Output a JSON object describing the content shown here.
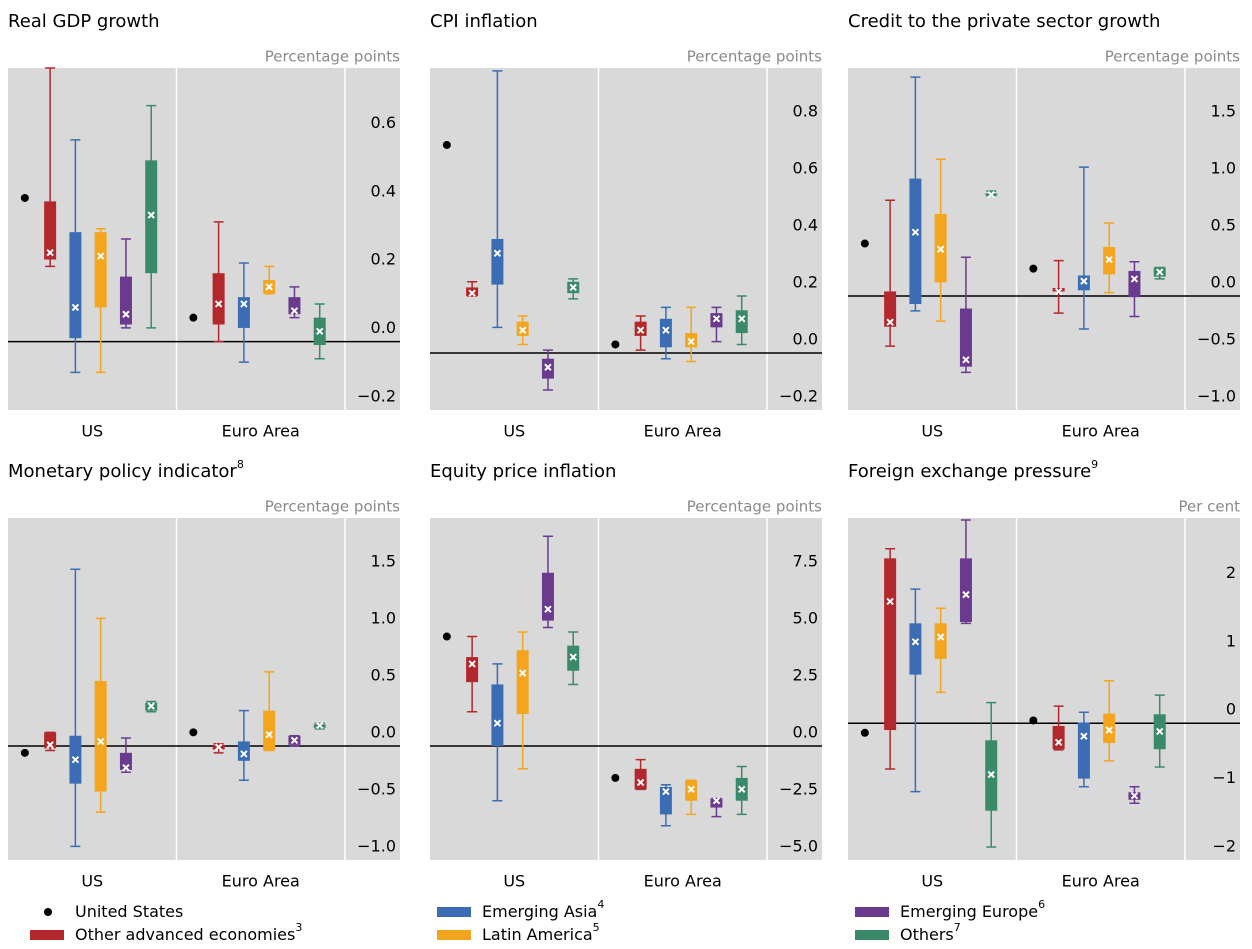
{
  "chart_data": [
    {
      "type": "box",
      "title": "Real GDP growth",
      "unit_label": "Percentage points",
      "categories": [
        "US",
        "Euro Area"
      ],
      "ylim": [
        -0.2,
        0.8
      ],
      "yticks": [
        {
          "value": -0.2,
          "label": "−0.2"
        },
        {
          "value": 0,
          "label": "0.0"
        },
        0.2,
        0.4,
        0.6
      ],
      "point": {
        "values": [
          0.42,
          0.07
        ]
      },
      "series": [
        {
          "values": [
            [
              0.22,
              0.24,
              0.26,
              0.41,
              0.8
            ],
            [
              0.0,
              0.05,
              0.11,
              0.2,
              0.35
            ]
          ]
        },
        {
          "values": [
            [
              -0.09,
              0.01,
              0.1,
              0.32,
              0.59
            ],
            [
              -0.06,
              0.04,
              0.11,
              0.13,
              0.23
            ]
          ]
        },
        {
          "values": [
            [
              -0.09,
              0.1,
              0.25,
              0.32,
              0.33
            ],
            [
              0.14,
              0.14,
              0.16,
              0.18,
              0.22
            ]
          ]
        },
        {
          "values": [
            [
              0.04,
              0.05,
              0.08,
              0.19,
              0.3
            ],
            [
              0.07,
              0.08,
              0.09,
              0.13,
              0.16
            ]
          ]
        },
        {
          "values": [
            [
              0.04,
              0.2,
              0.37,
              0.53,
              0.69
            ],
            [
              -0.05,
              -0.01,
              0.03,
              0.07,
              0.11
            ]
          ]
        }
      ]
    },
    {
      "type": "box",
      "title": "CPI inflation",
      "unit_label": "Percentage points",
      "categories": [
        "US",
        "Euro Area"
      ],
      "ylim": [
        -0.2,
        1.0
      ],
      "yticks": [
        {
          "value": -0.2,
          "label": "−0.2"
        },
        {
          "value": 0,
          "label": "0.0"
        },
        0.2,
        0.4,
        0.6,
        0.8
      ],
      "point": {
        "values": [
          0.73,
          0.03
        ]
      },
      "series": [
        {
          "values": [
            [
              0.2,
              0.2,
              0.21,
              0.23,
              0.25
            ],
            [
              0.01,
              0.06,
              0.08,
              0.11,
              0.13
            ]
          ]
        },
        {
          "values": [
            [
              0.09,
              0.24,
              0.35,
              0.4,
              0.99
            ],
            [
              -0.02,
              0.02,
              0.08,
              0.12,
              0.16
            ]
          ]
        },
        {
          "values": [
            [
              0.03,
              0.06,
              0.08,
              0.11,
              0.13
            ],
            [
              -0.03,
              0.02,
              0.04,
              0.07,
              0.16
            ]
          ]
        },
        {
          "values": [
            [
              -0.13,
              -0.09,
              -0.05,
              -0.02,
              0.01
            ],
            [
              0.04,
              0.09,
              0.12,
              0.14,
              0.16
            ]
          ]
        },
        {
          "values": [
            [
              0.19,
              0.21,
              0.23,
              0.25,
              0.26
            ],
            [
              0.03,
              0.07,
              0.12,
              0.15,
              0.2
            ]
          ]
        }
      ]
    },
    {
      "type": "box",
      "title": "Credit to the private sector growth",
      "unit_label": "Percentage points",
      "categories": [
        "US",
        "Euro Area"
      ],
      "ylim": [
        -1.0,
        2.0
      ],
      "yticks": [
        {
          "value": -1,
          "label": "−1.0"
        },
        {
          "value": -0.5,
          "label": "−0.5"
        },
        {
          "value": 0,
          "label": "0.0"
        },
        0.5,
        {
          "value": 1,
          "label": "1.0"
        },
        1.5
      ],
      "point": {
        "values": [
          0.46,
          0.24
        ]
      },
      "series": [
        {
          "values": [
            [
              -0.44,
              -0.27,
              -0.23,
              0.04,
              0.84
            ],
            [
              -0.15,
              0.04,
              0.04,
              0.07,
              0.31
            ]
          ]
        },
        {
          "values": [
            [
              -0.13,
              -0.07,
              0.56,
              1.03,
              1.92
            ],
            [
              -0.29,
              0.05,
              0.13,
              0.18,
              1.13
            ]
          ]
        },
        {
          "values": [
            [
              -0.22,
              0.12,
              0.41,
              0.72,
              1.2
            ],
            [
              0.03,
              0.19,
              0.32,
              0.43,
              0.64
            ]
          ]
        },
        {
          "values": [
            [
              -0.67,
              -0.62,
              -0.56,
              -0.11,
              0.34
            ],
            [
              -0.18,
              -0.01,
              0.15,
              0.22,
              0.3
            ]
          ]
        },
        {
          "values": [
            [
              0.88,
              0.89,
              0.89,
              0.9,
              0.92
            ],
            [
              0.15,
              0.17,
              0.21,
              0.25,
              0.25
            ]
          ]
        }
      ]
    },
    {
      "type": "box",
      "title": "Monetary policy indicator",
      "title_note": "8",
      "unit_label": "Percentage points",
      "categories": [
        "US",
        "Euro Area"
      ],
      "ylim": [
        -1.0,
        2.0
      ],
      "yticks": [
        {
          "value": -1,
          "label": "−1.0"
        },
        {
          "value": -0.5,
          "label": "−0.5"
        },
        {
          "value": 0,
          "label": "0.0"
        },
        0.5,
        {
          "value": 1,
          "label": "1.0"
        },
        1.5
      ],
      "point": {
        "values": [
          -0.06,
          0.12
        ]
      },
      "series": [
        {
          "values": [
            [
              -0.04,
              -0.02,
              0.01,
              0.12,
              0.12
            ],
            [
              -0.06,
              -0.03,
              -0.01,
              0.01,
              0.02
            ]
          ]
        },
        {
          "values": [
            [
              -0.88,
              -0.33,
              -0.12,
              0.09,
              1.55
            ],
            [
              -0.3,
              -0.13,
              -0.07,
              0.04,
              0.31
            ]
          ]
        },
        {
          "values": [
            [
              -0.58,
              -0.4,
              0.04,
              0.57,
              1.12
            ],
            [
              -0.04,
              -0.04,
              0.1,
              0.31,
              0.65
            ]
          ]
        },
        {
          "values": [
            [
              -0.23,
              -0.21,
              -0.19,
              -0.06,
              0.07
            ],
            [
              0.0,
              0.01,
              0.05,
              0.09,
              0.09
            ]
          ]
        },
        {
          "values": [
            [
              0.3,
              0.31,
              0.35,
              0.38,
              0.39
            ],
            [
              0.15,
              0.16,
              0.18,
              0.19,
              0.2
            ]
          ]
        }
      ]
    },
    {
      "type": "box",
      "title": "Equity price inflation",
      "unit_label": "Percentage points",
      "categories": [
        "US",
        "Euro Area"
      ],
      "ylim": [
        -5,
        10
      ],
      "yticks": [
        {
          "value": -5,
          "label": "−5.0"
        },
        {
          "value": -2.5,
          "label": "−2.5"
        },
        {
          "value": 0,
          "label": "0.0"
        },
        2.5,
        {
          "value": 5,
          "label": "5.0"
        },
        7.5
      ],
      "point": {
        "values": [
          4.8,
          -1.4
        ]
      },
      "series": [
        {
          "values": [
            [
              1.5,
              2.8,
              3.6,
              3.9,
              4.8
            ],
            [
              -1.9,
              -1.9,
              -1.6,
              -1.0,
              -0.6
            ]
          ]
        },
        {
          "values": [
            [
              -2.4,
              0.0,
              1.0,
              2.7,
              3.6
            ],
            [
              -3.5,
              -3.0,
              -2.0,
              -1.8,
              -1.7
            ]
          ]
        },
        {
          "values": [
            [
              -1.0,
              1.4,
              3.2,
              4.2,
              5.0
            ],
            [
              -3.0,
              -2.4,
              -1.9,
              -1.5,
              -1.5
            ]
          ]
        },
        {
          "values": [
            [
              5.2,
              5.5,
              6.0,
              7.6,
              9.2
            ],
            [
              -3.1,
              -2.7,
              -2.4,
              -2.3,
              -2.3
            ]
          ]
        },
        {
          "values": [
            [
              2.7,
              3.3,
              3.9,
              4.4,
              5.0
            ],
            [
              -3.0,
              -2.4,
              -1.9,
              -1.4,
              -0.9
            ]
          ]
        }
      ]
    },
    {
      "type": "box",
      "title": "Foreign exchange pressure",
      "title_note": "9",
      "unit_label": "Per cent",
      "categories": [
        "US",
        "Euro Area"
      ],
      "ylim": [
        -2,
        3
      ],
      "yticks": [
        {
          "value": -2,
          "label": "−2"
        },
        {
          "value": -1,
          "label": "−1"
        },
        0,
        1,
        2
      ],
      "point": {
        "values": [
          -0.14,
          0.04
        ]
      },
      "series": [
        {
          "values": [
            [
              -0.67,
              -0.1,
              1.78,
              2.41,
              2.55
            ],
            [
              -0.39,
              -0.38,
              -0.28,
              -0.04,
              0.25
            ]
          ]
        },
        {
          "values": [
            [
              -1.0,
              0.71,
              1.19,
              1.46,
              1.96
            ],
            [
              -0.93,
              -0.81,
              -0.19,
              0.01,
              0.16
            ]
          ]
        },
        {
          "values": [
            [
              0.45,
              0.94,
              1.26,
              1.46,
              1.68
            ],
            [
              -0.55,
              -0.29,
              -0.1,
              0.14,
              0.62
            ]
          ]
        },
        {
          "values": [
            [
              1.46,
              1.48,
              1.88,
              2.41,
              2.97
            ],
            [
              -1.17,
              -1.12,
              -1.06,
              -1.01,
              -0.93
            ]
          ]
        },
        {
          "values": [
            [
              -1.81,
              -1.28,
              -0.75,
              -0.25,
              0.3
            ],
            [
              -0.64,
              -0.38,
              -0.12,
              0.13,
              0.41
            ]
          ]
        }
      ]
    }
  ],
  "legend": {
    "items": [
      {
        "name": "United States",
        "color": "#000000"
      },
      {
        "name": "Other advanced economies",
        "note": "3",
        "color": "#b3282d"
      },
      {
        "name": "Emerging Asia",
        "note": "4",
        "color": "#3a6db4"
      },
      {
        "name": "Latin America",
        "note": "5",
        "color": "#f2a51d"
      },
      {
        "name": "Emerging Europe",
        "note": "6",
        "color": "#6a3a8e"
      },
      {
        "name": "Others",
        "note": "7",
        "color": "#3a8a6a"
      }
    ]
  }
}
